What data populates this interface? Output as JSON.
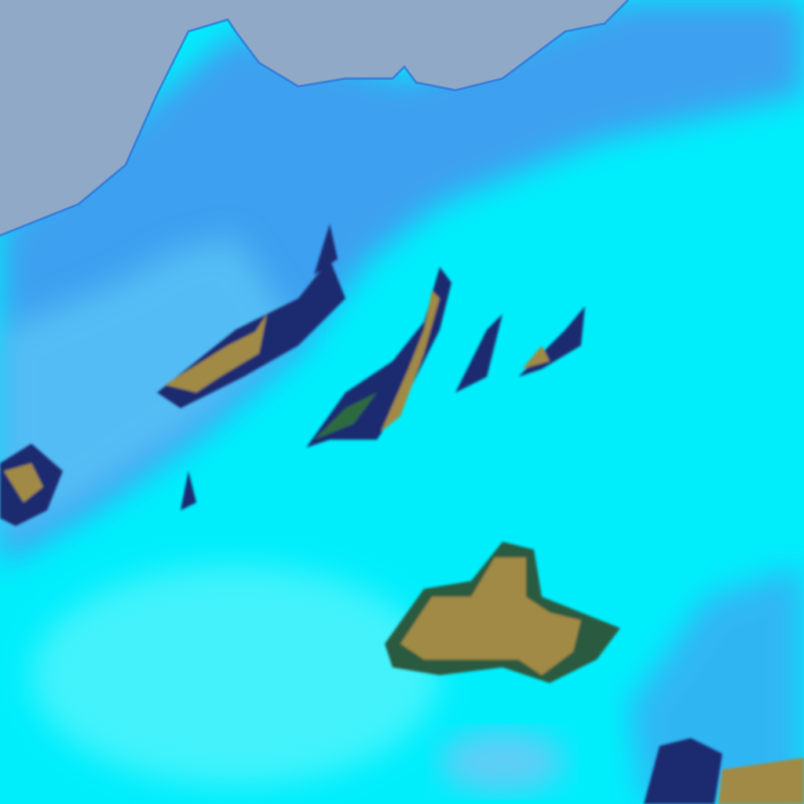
{
  "image": {
    "kind": "false-color satellite view",
    "colors": {
      "sea": "#8fa9c6",
      "land_low": "#3b9ff0",
      "land_mid": "#55c6f5",
      "snow_cloud": "#00f0ff",
      "bright_snow": "#5ef8fb",
      "terrain_bare": "#a08a45",
      "shadow": "#1a2a70",
      "vegetation": "#2f6a40"
    }
  }
}
